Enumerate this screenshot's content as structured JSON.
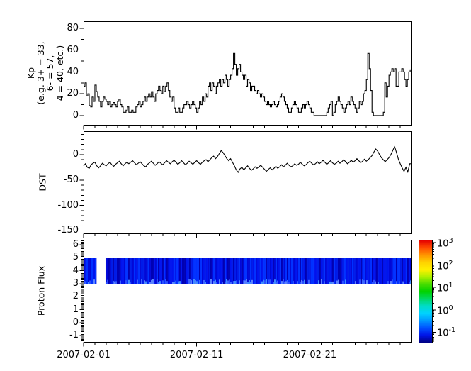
{
  "xaxis": {
    "tick_labels": [
      "2007-02-01",
      "2007-02-11",
      "2007-02-21"
    ],
    "tick_days": [
      0,
      10,
      20
    ],
    "minor_step_days": 1,
    "range_days": [
      0,
      28.93
    ]
  },
  "panels": {
    "kp": {
      "ylabel_lines": [
        "Kp",
        "(e.g. 3+ = 33,",
        "6- = 57,",
        "4 = 40, etc.)"
      ],
      "ytick_labels": [
        "0",
        "20",
        "40",
        "60",
        "80"
      ],
      "ytick_values": [
        0,
        20,
        40,
        60,
        80
      ],
      "yminor_step": 10,
      "yrange": [
        -8.5,
        86.5
      ],
      "line_color": "#000000"
    },
    "dst": {
      "ylabel": "DST",
      "ytick_labels": [
        "0",
        "-50",
        "-100",
        "-150"
      ],
      "ytick_values": [
        0,
        -50,
        -100,
        -150
      ],
      "yminor_step": 10,
      "yrange": [
        -155,
        46
      ],
      "line_color": "#000000"
    },
    "proton": {
      "ylabel": "Proton Flux",
      "ytick_labels": [
        "6",
        "5",
        "4",
        "3",
        "2",
        "1",
        "0",
        "-1"
      ],
      "ytick_values": [
        6,
        5,
        4,
        3,
        2,
        1,
        0,
        -1
      ],
      "yminor_step": 0.1,
      "yrange": [
        -1.48,
        6.39
      ]
    }
  },
  "colorbar": {
    "base": "10",
    "exponents": [
      "3",
      "2",
      "1",
      "0",
      "-1"
    ],
    "gradient_top_to_bottom": [
      "#e40000",
      "#ff4c00",
      "#ff9600",
      "#ffd200",
      "#fff000",
      "#aaf000",
      "#46dc00",
      "#00d200",
      "#00d864",
      "#00dcc8",
      "#00d2ff",
      "#0096ff",
      "#0050ff",
      "#0014e6",
      "#000082"
    ]
  },
  "band_colors": {
    "base": [
      "#0000b4",
      "#0008d8",
      "#0013ee",
      "#001ae8",
      "#0030ff"
    ],
    "light": [
      "#2b50ff",
      "#3c64ff",
      "#5a82ff",
      "#3f8cff"
    ]
  },
  "chart_data": [
    {
      "type": "line",
      "panel": "Kp",
      "ylabel": "Kp (e.g. 3+ = 33, 6- = 57, 4 = 40, etc.)",
      "x_start": "2007-02-01",
      "step_hours": 3,
      "draw_style": "steps",
      "yticks": [
        0,
        20,
        40,
        60,
        80
      ],
      "ylim": [
        -8.5,
        86.5
      ],
      "values": [
        27,
        30,
        18,
        20,
        9,
        8,
        17,
        13,
        28,
        22,
        17,
        13,
        8,
        13,
        17,
        15,
        13,
        10,
        13,
        8,
        10,
        12,
        10,
        8,
        13,
        15,
        10,
        8,
        3,
        3,
        5,
        8,
        3,
        3,
        5,
        3,
        3,
        8,
        10,
        13,
        8,
        10,
        13,
        17,
        13,
        17,
        20,
        17,
        22,
        17,
        13,
        20,
        23,
        27,
        23,
        20,
        27,
        22,
        27,
        30,
        23,
        17,
        13,
        17,
        7,
        3,
        3,
        7,
        3,
        3,
        7,
        10,
        10,
        13,
        10,
        7,
        10,
        13,
        10,
        7,
        3,
        7,
        13,
        10,
        17,
        13,
        20,
        17,
        27,
        30,
        23,
        30,
        27,
        20,
        27,
        30,
        33,
        27,
        33,
        30,
        37,
        33,
        27,
        33,
        37,
        43,
        57,
        47,
        37,
        43,
        47,
        40,
        37,
        33,
        37,
        27,
        33,
        30,
        23,
        27,
        27,
        23,
        20,
        23,
        20,
        17,
        20,
        17,
        13,
        10,
        13,
        10,
        8,
        10,
        13,
        10,
        8,
        10,
        13,
        17,
        20,
        17,
        13,
        10,
        7,
        3,
        3,
        7,
        10,
        13,
        10,
        7,
        3,
        3,
        7,
        10,
        7,
        10,
        13,
        10,
        7,
        3,
        3,
        0,
        0,
        0,
        0,
        0,
        0,
        0,
        0,
        0,
        3,
        7,
        10,
        13,
        0,
        3,
        10,
        13,
        17,
        13,
        10,
        7,
        3,
        7,
        10,
        13,
        10,
        17,
        13,
        10,
        7,
        3,
        7,
        13,
        10,
        13,
        20,
        23,
        33,
        57,
        43,
        23,
        3,
        0,
        0,
        0,
        0,
        0,
        0,
        0,
        3,
        30,
        17,
        27,
        37,
        40,
        43,
        40,
        43,
        27,
        27,
        40,
        40,
        43,
        40,
        33,
        27,
        33,
        40,
        42
      ]
    },
    {
      "type": "line",
      "panel": "DST",
      "ylabel": "DST",
      "x_start": "2007-02-01",
      "step_hours": 4,
      "draw_style": "line",
      "yticks": [
        0,
        -50,
        -100,
        -150
      ],
      "ylim": [
        -155,
        46
      ],
      "values": [
        -22,
        -18,
        -25,
        -27,
        -20,
        -17,
        -15,
        -22,
        -26,
        -22,
        -17,
        -20,
        -22,
        -18,
        -15,
        -20,
        -23,
        -19,
        -16,
        -13,
        -18,
        -22,
        -18,
        -15,
        -18,
        -15,
        -12,
        -16,
        -20,
        -17,
        -14,
        -18,
        -22,
        -24,
        -19,
        -16,
        -13,
        -17,
        -21,
        -18,
        -14,
        -17,
        -20,
        -16,
        -12,
        -15,
        -18,
        -14,
        -11,
        -15,
        -19,
        -16,
        -12,
        -16,
        -20,
        -17,
        -13,
        -16,
        -19,
        -15,
        -12,
        -16,
        -19,
        -15,
        -12,
        -10,
        -14,
        -10,
        -6,
        -3,
        -8,
        -4,
        2,
        8,
        4,
        -2,
        -8,
        -12,
        -8,
        -15,
        -22,
        -30,
        -35,
        -28,
        -25,
        -30,
        -26,
        -22,
        -27,
        -31,
        -28,
        -24,
        -27,
        -24,
        -21,
        -25,
        -29,
        -33,
        -29,
        -26,
        -30,
        -27,
        -23,
        -27,
        -24,
        -20,
        -24,
        -21,
        -17,
        -21,
        -24,
        -22,
        -18,
        -21,
        -19,
        -15,
        -19,
        -22,
        -20,
        -16,
        -13,
        -17,
        -20,
        -18,
        -14,
        -18,
        -15,
        -11,
        -15,
        -19,
        -16,
        -12,
        -16,
        -19,
        -17,
        -13,
        -17,
        -14,
        -10,
        -14,
        -18,
        -15,
        -11,
        -15,
        -12,
        -8,
        -12,
        -16,
        -13,
        -9,
        -13,
        -10,
        -6,
        -2,
        5,
        11,
        7,
        0,
        -6,
        -10,
        -14,
        -10,
        -6,
        0,
        8,
        16,
        4,
        -9,
        -18,
        -26,
        -33,
        -25,
        -34,
        -18
      ]
    },
    {
      "type": "heatmap",
      "panel": "Proton Flux",
      "ylabel": "Proton Flux",
      "x_start": "2007-02-01",
      "ylim": [
        -1.48,
        6.39
      ],
      "yticks": [
        6,
        5,
        4,
        3,
        2,
        1,
        0,
        -1
      ],
      "band_y": [
        3,
        5
      ],
      "segments_days": [
        [
          0,
          1.15
        ],
        [
          1.94,
          28.93
        ]
      ],
      "color_scale": {
        "type": "log",
        "min": 0.1,
        "max": 1000,
        "colormap": "rainbow"
      },
      "approx_value_range": [
        0.05,
        0.3
      ]
    }
  ]
}
